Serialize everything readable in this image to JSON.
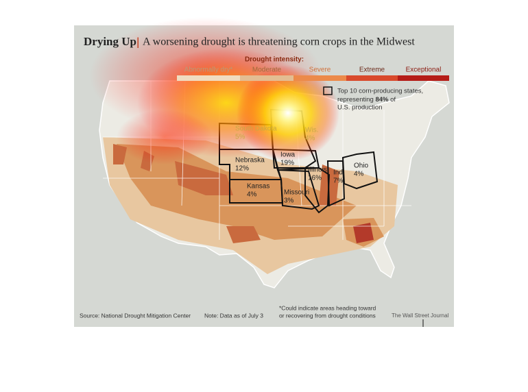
{
  "header": {
    "title": "Drying Up",
    "subtitle": "A worsening drought is threatening corn crops in the Midwest"
  },
  "legend": {
    "title": "Drought intensity:",
    "levels": [
      "Abnormally dry*",
      "Moderate",
      "Severe",
      "Extreme",
      "Exceptional"
    ],
    "box_note": {
      "line1": "Top 10 corn-producing states,",
      "line2_before": "representing ",
      "line2_bold": "84%",
      "line2_after": " of",
      "line3": "U.S. production"
    }
  },
  "states": [
    {
      "name": "South Dakota",
      "share": "5%"
    },
    {
      "name": "Wis.",
      "share": "4%"
    },
    {
      "name": "Nebraska",
      "share": "12%"
    },
    {
      "name": "Iowa",
      "share": "19%"
    },
    {
      "name": "Illinois",
      "share": "16%"
    },
    {
      "name": "Ind.",
      "share": "7%"
    },
    {
      "name": "Ohio",
      "share": "4%"
    },
    {
      "name": "Kansas",
      "share": "4%"
    },
    {
      "name": "Missouri",
      "share": "3%"
    }
  ],
  "footer": {
    "source": "Source: National Drought Mitigation Center",
    "note": "Note: Data as of July 3",
    "footnote_line1": "*Could indicate areas heading toward",
    "footnote_line2": "or recovering from drought conditions",
    "credit": "The Wall Street Journal"
  }
}
